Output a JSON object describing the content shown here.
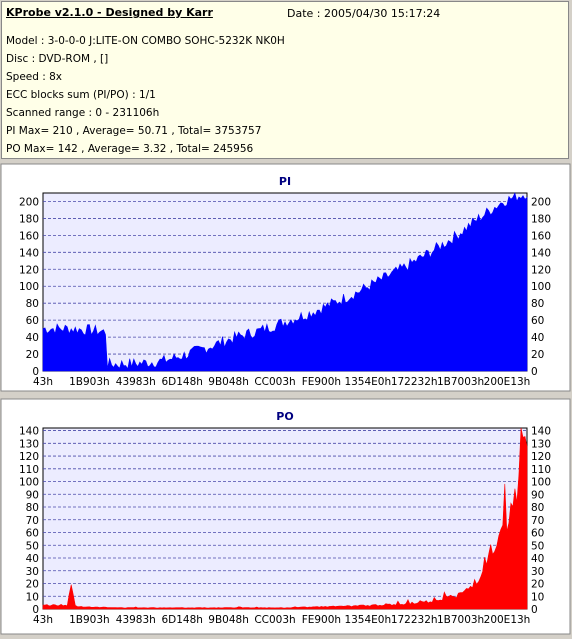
{
  "header": {
    "title": "KProbe v2.1.0 - Designed by Karr",
    "date": "Date : 2005/04/30 15:17:24",
    "lines": [
      "Model : 3-0-0-0 J:LITE-ON COMBO SOHC-5232K NK0H",
      "Disc : DVD-ROM ,  []",
      "Speed : 8x",
      "ECC blocks sum (PI/PO) : 1/1",
      "Scanned range : 0 - 231106h",
      "PI Max= 210 , Average= 50.71 , Total= 3753757",
      "PO Max= 142 , Average= 3.32 , Total= 245956"
    ]
  },
  "colors": {
    "pi": "#0000ff",
    "po": "#ff0000",
    "plot_bg": "#ececff",
    "panel_bg": "#ffffff"
  },
  "chart_data": [
    {
      "type": "area",
      "title": "PI",
      "xlabel": "",
      "ylabel": "",
      "ylim": [
        0,
        210
      ],
      "yticks": [
        0,
        20,
        40,
        60,
        80,
        100,
        120,
        140,
        160,
        180,
        200
      ],
      "xtick_labels": [
        "43h",
        "1B903h",
        "43983h",
        "6D148h",
        "9B048h",
        "CC003h",
        "FE900h",
        "1354E0h",
        "172232h",
        "1B7003h",
        "200E13h"
      ],
      "grid": true,
      "series": [
        {
          "color": "#0000ff",
          "x": [
            0,
            0.05,
            0.1,
            0.13,
            0.131,
            0.15,
            0.2,
            0.25,
            0.3,
            0.35,
            0.4,
            0.45,
            0.5,
            0.55,
            0.6,
            0.65,
            0.7,
            0.75,
            0.8,
            0.85,
            0.9,
            0.95,
            1.0
          ],
          "values": [
            50,
            50,
            48,
            46,
            8,
            8,
            9,
            12,
            20,
            30,
            40,
            48,
            58,
            68,
            80,
            93,
            108,
            123,
            140,
            158,
            180,
            200,
            210
          ]
        }
      ]
    },
    {
      "type": "area",
      "title": "PO",
      "xlabel": "",
      "ylabel": "",
      "ylim": [
        0,
        142
      ],
      "yticks": [
        0,
        10,
        20,
        30,
        40,
        50,
        60,
        70,
        80,
        90,
        100,
        110,
        120,
        130,
        140
      ],
      "xtick_labels": [
        "43h",
        "1B903h",
        "43983h",
        "6D148h",
        "9B048h",
        "CC003h",
        "FE900h",
        "1354E0h",
        "172232h",
        "1B7003h",
        "200E13h"
      ],
      "grid": true,
      "series": [
        {
          "color": "#ff0000",
          "x": [
            0,
            0.05,
            0.06,
            0.065,
            0.07,
            0.15,
            0.3,
            0.5,
            0.6,
            0.7,
            0.75,
            0.8,
            0.85,
            0.88,
            0.9,
            0.92,
            0.94,
            0.96,
            0.98,
            0.99,
            1.0
          ],
          "values": [
            3,
            3,
            20,
            3,
            2,
            1,
            1,
            1,
            2,
            3,
            4,
            6,
            10,
            15,
            25,
            40,
            50,
            60,
            90,
            140,
            142
          ]
        }
      ]
    }
  ]
}
